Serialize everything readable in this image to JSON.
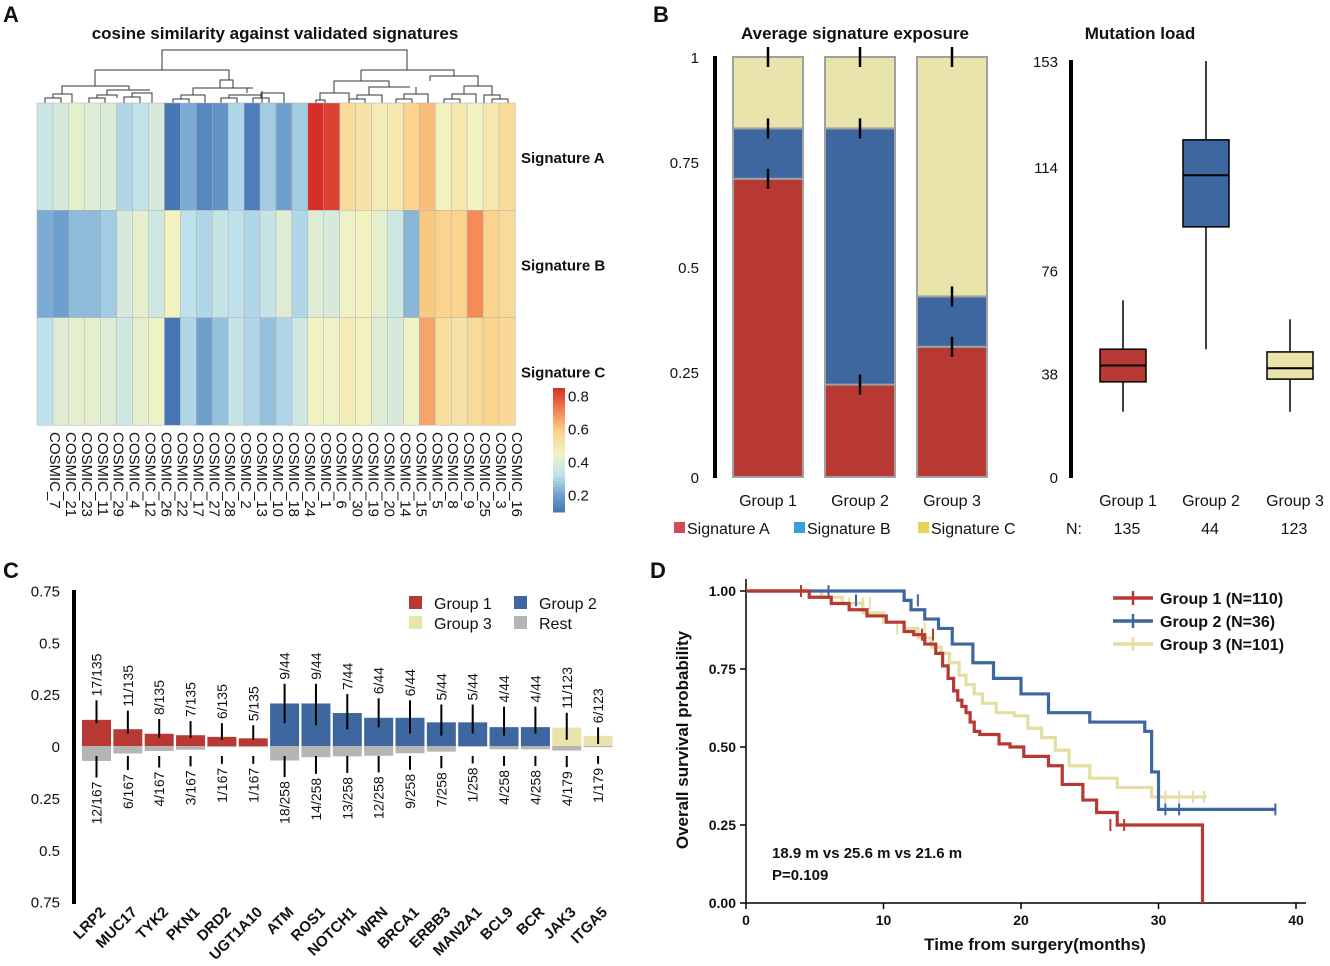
{
  "panels": {
    "a": {
      "letter": "A"
    },
    "b": {
      "letter": "B"
    },
    "c": {
      "letter": "C"
    },
    "d": {
      "letter": "D"
    }
  },
  "chart_data": [
    {
      "panel": "A",
      "type": "heatmap",
      "title": "cosine similarity against validated signatures",
      "rows": [
        "Signature A",
        "Signature B",
        "Signature C"
      ],
      "columns": [
        "COSMIC_7",
        "COSMIC_21",
        "COSMIC_23",
        "COSMIC_11",
        "COSMIC_29",
        "COSMIC_4",
        "COSMIC_12",
        "COSMIC_26",
        "COSMIC_22",
        "COSMIC_17",
        "COSMIC_27",
        "COSMIC_28",
        "COSMIC_2",
        "COSMIC_13",
        "COSMIC_10",
        "COSMIC_18",
        "COSMIC_24",
        "COSMIC_1",
        "COSMIC_6",
        "COSMIC_30",
        "COSMIC_19",
        "COSMIC_20",
        "COSMIC_14",
        "COSMIC_15",
        "COSMIC_5",
        "COSMIC_8",
        "COSMIC_9",
        "COSMIC_25",
        "COSMIC_3",
        "COSMIC_16"
      ],
      "values": [
        [
          0.35,
          0.38,
          0.42,
          0.4,
          0.39,
          0.3,
          0.33,
          0.38,
          0.08,
          0.22,
          0.14,
          0.17,
          0.3,
          0.12,
          0.28,
          0.2,
          0.28,
          0.86,
          0.82,
          0.55,
          0.52,
          0.48,
          0.5,
          0.58,
          0.62,
          0.46,
          0.5,
          0.45,
          0.5,
          0.55
        ],
        [
          0.22,
          0.2,
          0.25,
          0.25,
          0.28,
          0.38,
          0.42,
          0.36,
          0.46,
          0.32,
          0.3,
          0.34,
          0.32,
          0.3,
          0.34,
          0.4,
          0.3,
          0.4,
          0.38,
          0.44,
          0.46,
          0.42,
          0.36,
          0.24,
          0.6,
          0.58,
          0.58,
          0.7,
          0.58,
          0.55
        ],
        [
          0.32,
          0.4,
          0.42,
          0.42,
          0.4,
          0.36,
          0.42,
          0.44,
          0.1,
          0.3,
          0.2,
          0.26,
          0.34,
          0.3,
          0.26,
          0.3,
          0.36,
          0.46,
          0.44,
          0.48,
          0.46,
          0.4,
          0.38,
          0.44,
          0.66,
          0.54,
          0.52,
          0.55,
          0.58,
          0.56
        ]
      ],
      "colorbar": {
        "range": [
          0.1,
          0.85
        ],
        "ticks": [
          0.2,
          0.4,
          0.6,
          0.8
        ],
        "tick_labels": [
          "0.2",
          "0.4",
          "0.6",
          "0.8"
        ]
      }
    },
    {
      "panel": "B",
      "type": "bar",
      "stacked": true,
      "title": "Average signature exposure",
      "categories": [
        "Group 1",
        "Group 2",
        "Group 3"
      ],
      "series": [
        {
          "name": "Signature A",
          "values": [
            0.71,
            0.22,
            0.31
          ],
          "color": "#b83933"
        },
        {
          "name": "Signature B",
          "values": [
            0.12,
            0.61,
            0.12
          ],
          "color": "#3e67a0"
        },
        {
          "name": "Signature C",
          "values": [
            0.17,
            0.17,
            0.57
          ],
          "color": "#e8e4ac"
        }
      ],
      "error_ticks": [
        [
          0.71,
          0.83,
          1.0
        ],
        [
          0.22,
          0.83,
          1.0
        ],
        [
          0.31,
          0.43,
          1.0
        ]
      ],
      "ylim": [
        0,
        1
      ],
      "yticks": [
        0,
        0.25,
        0.5,
        0.75,
        1
      ],
      "ytick_labels": [
        "0",
        "0.25",
        "0.5",
        "0.75",
        "1"
      ],
      "legend": [
        {
          "label": "Signature A",
          "color": "#d34a5a"
        },
        {
          "label": "Signature B",
          "color": "#3a9fd6"
        },
        {
          "label": "Signature C",
          "color": "#e4d55a"
        }
      ],
      "legend_position": "bottom"
    },
    {
      "panel": "B",
      "type": "box",
      "title": "Mutation load",
      "categories": [
        "Group 1",
        "Group 2",
        "Group 3"
      ],
      "boxes": [
        {
          "min": 24,
          "q1": 35,
          "median": 41,
          "q3": 47,
          "max": 65,
          "color": "#b83933"
        },
        {
          "min": 47,
          "q1": 92,
          "median": 111,
          "q3": 124,
          "max": 153,
          "color": "#3e67a0"
        },
        {
          "min": 24,
          "q1": 36,
          "median": 40,
          "q3": 46,
          "max": 58,
          "color": "#e8e4ac"
        }
      ],
      "ylim": [
        0,
        153
      ],
      "yticks": [
        0,
        38,
        76,
        114,
        153
      ],
      "ytick_labels": [
        "0",
        "38",
        "76",
        "114",
        "153"
      ],
      "n_label": "N:",
      "n_values": [
        "135",
        "44",
        "123"
      ]
    },
    {
      "panel": "C",
      "type": "bar",
      "diverging": true,
      "categories": [
        "LRP2",
        "MUC17",
        "TYK2",
        "PKN1",
        "DRD2",
        "UGT1A10",
        "ATM",
        "ROS1",
        "NOTCH1",
        "WRN",
        "BRCA1",
        "ERBB3",
        "MAN2A1",
        "BCL9",
        "BCR",
        "JAK3",
        "ITGA5"
      ],
      "series": [
        {
          "name": "Group",
          "group_index": [
            1,
            1,
            1,
            1,
            1,
            1,
            2,
            2,
            2,
            2,
            2,
            2,
            2,
            2,
            2,
            3,
            3
          ],
          "values": [
            0.126,
            0.081,
            0.059,
            0.052,
            0.044,
            0.037,
            0.205,
            0.205,
            0.159,
            0.136,
            0.136,
            0.114,
            0.114,
            0.091,
            0.091,
            0.089,
            0.049
          ]
        },
        {
          "name": "Rest",
          "values": [
            0.072,
            0.036,
            0.024,
            0.018,
            0.006,
            0.006,
            0.07,
            0.054,
            0.05,
            0.047,
            0.035,
            0.027,
            0.004,
            0.016,
            0.016,
            0.022,
            0.006
          ]
        }
      ],
      "top_labels": [
        "17/135",
        "11/135",
        "8/135",
        "7/135",
        "6/135",
        "5/135",
        "9/44",
        "9/44",
        "7/44",
        "6/44",
        "6/44",
        "5/44",
        "5/44",
        "4/44",
        "4/44",
        "11/123",
        "6/123"
      ],
      "bottom_labels": [
        "12/167",
        "6/167",
        "4/167",
        "3/167",
        "1/167",
        "1/167",
        "18/258",
        "14/258",
        "13/258",
        "12/258",
        "9/258",
        "7/258",
        "1/258",
        "4/258",
        "4/258",
        "4/179",
        "1/179"
      ],
      "ci_high": [
        0.22,
        0.17,
        0.13,
        0.12,
        0.11,
        0.1,
        0.3,
        0.3,
        0.25,
        0.23,
        0.22,
        0.2,
        0.2,
        0.19,
        0.19,
        0.16,
        0.09
      ],
      "ci_low": [
        0.11,
        0.06,
        0.04,
        0.04,
        0.03,
        0.03,
        0.11,
        0.1,
        0.08,
        0.09,
        0.06,
        0.05,
        0.06,
        0.05,
        0.06,
        0.03,
        0.01
      ],
      "ylim": [
        -0.75,
        0.75
      ],
      "yticks": [
        0.75,
        0.5,
        0.25,
        0,
        -0.25,
        -0.5,
        -0.75
      ],
      "ytick_labels": [
        "0.75",
        "0.5",
        "0.25",
        "0",
        "0.25",
        "0.5",
        "0.75"
      ],
      "legend": [
        {
          "label": "Group 1",
          "color": "#b83933"
        },
        {
          "label": "Group 2",
          "color": "#3e67a0"
        },
        {
          "label": "Group 3",
          "color": "#e8e4ac"
        },
        {
          "label": "Rest",
          "color": "#b5b5b5"
        }
      ],
      "legend_position": "top-right"
    },
    {
      "panel": "D",
      "type": "line",
      "step": true,
      "xlabel": "Time from surgery(months)",
      "ylabel": "Overall survival probability",
      "xlim": [
        0,
        40
      ],
      "ylim": [
        0,
        1
      ],
      "xticks": [
        0,
        10,
        20,
        30,
        40
      ],
      "xtick_labels": [
        "0",
        "10",
        "20",
        "30",
        "40"
      ],
      "yticks": [
        0,
        0.25,
        0.5,
        0.75,
        1
      ],
      "ytick_labels": [
        "0.00",
        "0.25",
        "0.50",
        "0.75",
        "1.00"
      ],
      "series": [
        {
          "name": "Group 1 (N=110)",
          "color": "#b83933",
          "x": [
            0,
            4,
            4.6,
            6.2,
            7.5,
            8.8,
            10.2,
            11.5,
            12.2,
            13,
            13.8,
            14.3,
            14.7,
            15.1,
            15.4,
            15.7,
            16,
            16.3,
            16.6,
            17,
            17.6,
            18.4,
            19.2,
            20.2,
            21,
            22,
            23,
            24.5,
            25.5,
            27,
            33.2
          ],
          "y": [
            1,
            1,
            0.98,
            0.96,
            0.94,
            0.92,
            0.9,
            0.87,
            0.86,
            0.83,
            0.8,
            0.76,
            0.72,
            0.68,
            0.65,
            0.63,
            0.61,
            0.58,
            0.55,
            0.54,
            0.54,
            0.51,
            0.5,
            0.47,
            0.47,
            0.44,
            0.38,
            0.33,
            0.29,
            0.25,
            0
          ],
          "censor_x": [
            4,
            12.8,
            13.6,
            26.5,
            27.5
          ],
          "censor_y": [
            1,
            0.86,
            0.86,
            0.25,
            0.25
          ]
        },
        {
          "name": "Group 2 (N=36)",
          "color": "#3e67a0",
          "x": [
            0,
            5,
            11.5,
            12,
            13,
            14,
            15,
            16.5,
            18,
            20,
            22,
            25,
            29,
            29.5,
            30,
            38.5
          ],
          "y": [
            1,
            1,
            0.97,
            0.94,
            0.91,
            0.88,
            0.83,
            0.77,
            0.72,
            0.67,
            0.61,
            0.58,
            0.55,
            0.42,
            0.3,
            0.3
          ],
          "censor_x": [
            6,
            8,
            12.5,
            30.5,
            31.5,
            38.5
          ],
          "censor_y": [
            1,
            0.97,
            0.97,
            0.3,
            0.3,
            0.3
          ]
        },
        {
          "name": "Group 3 (N=101)",
          "color": "#e3dfa3",
          "x": [
            0,
            4,
            5.5,
            7,
            8.5,
            10,
            11.5,
            12.5,
            13.5,
            14.2,
            14.8,
            15.5,
            16,
            16.6,
            17.2,
            18.2,
            19.5,
            20.5,
            21.5,
            22.5,
            23.5,
            25,
            27,
            29.5,
            33.5
          ],
          "y": [
            1,
            1,
            0.98,
            0.96,
            0.93,
            0.9,
            0.88,
            0.85,
            0.82,
            0.8,
            0.77,
            0.73,
            0.7,
            0.67,
            0.64,
            0.61,
            0.6,
            0.56,
            0.53,
            0.49,
            0.44,
            0.4,
            0.37,
            0.34,
            0.34
          ],
          "censor_x": [
            7.5,
            8.5,
            9,
            11,
            13,
            30.5,
            31.5,
            32.5,
            33.3
          ],
          "censor_y": [
            0.96,
            0.96,
            0.96,
            0.88,
            0.88,
            0.34,
            0.34,
            0.34,
            0.34
          ]
        }
      ],
      "annotations": [
        "18.9 m vs 25.6 m vs 21.6 m",
        "P=0.109"
      ],
      "legend_position": "top-right"
    }
  ]
}
